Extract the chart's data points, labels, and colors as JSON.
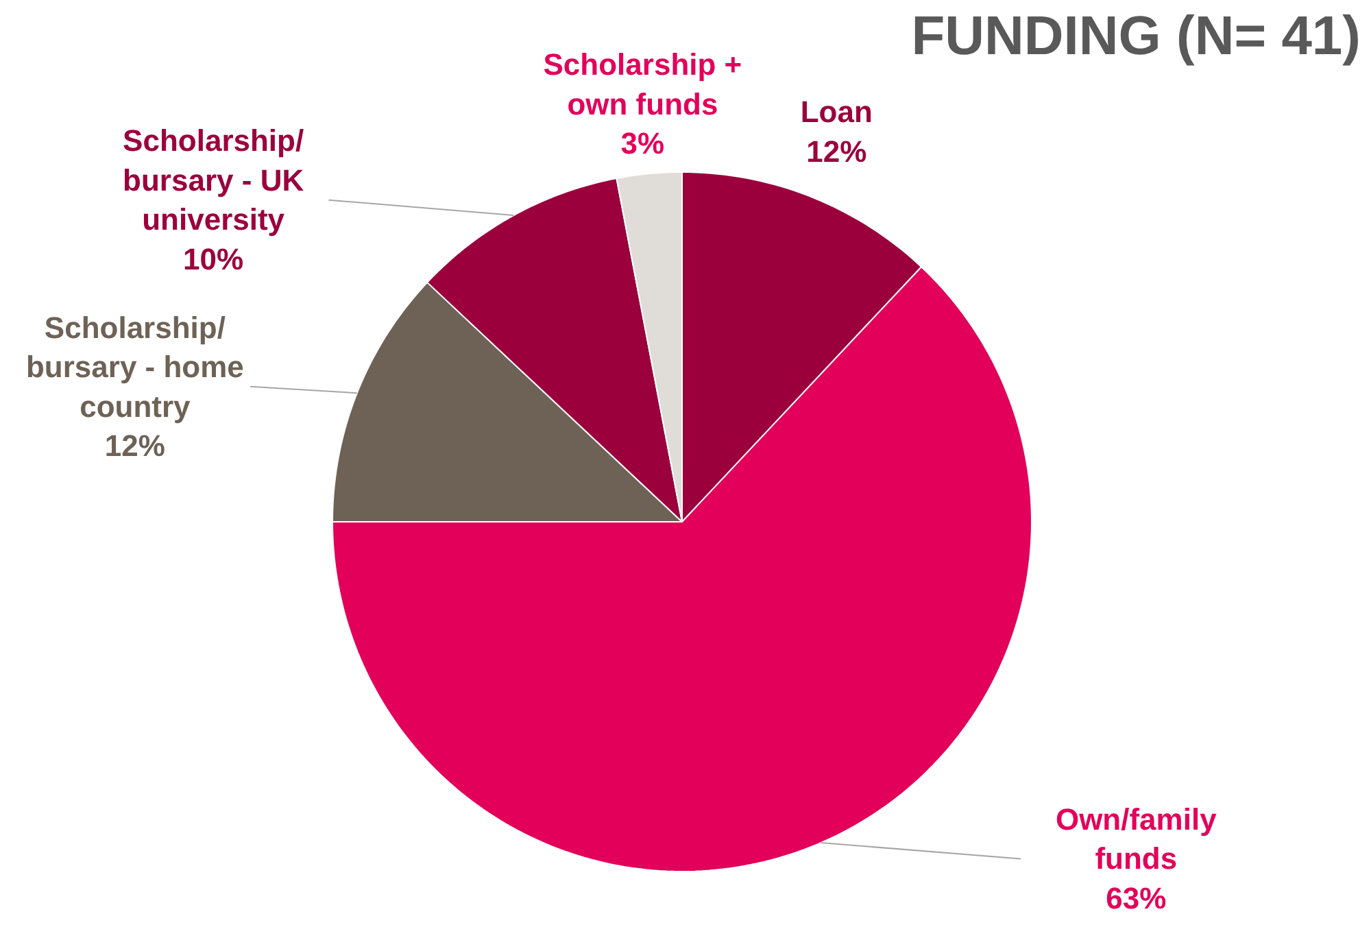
{
  "chart_data": {
    "type": "pie",
    "title": "FUNDING (N= 41)",
    "categories": [
      "Loan",
      "Own/family funds",
      "Scholarship/bursary - home country",
      "Scholarship/bursary - UK university",
      "Scholarship + own funds"
    ],
    "values": [
      12,
      63,
      12,
      10,
      3
    ],
    "colors": [
      "#9b003c",
      "#e2005a",
      "#6e6256",
      "#9b003c",
      "#e0dcd7"
    ],
    "value_labels": [
      "12%",
      "63%",
      "12%",
      "10%",
      "3%"
    ]
  }
}
